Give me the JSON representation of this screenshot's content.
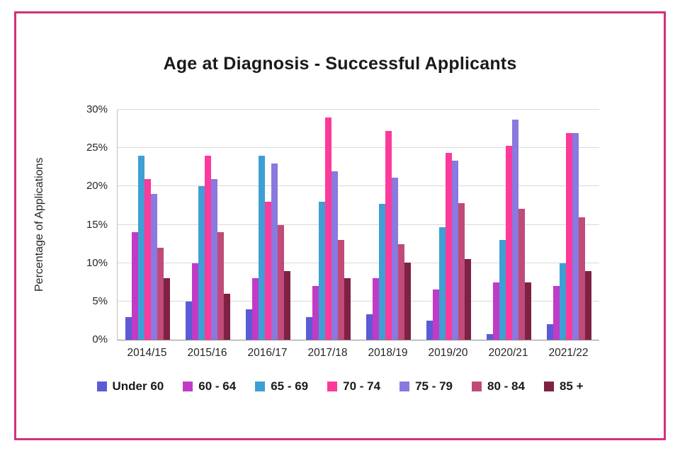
{
  "frame": {
    "border_color": "#D2317E"
  },
  "chart_data": {
    "type": "bar",
    "title": "Age at Diagnosis - Successful Applicants",
    "xlabel": "",
    "ylabel": "Percentage of Applications",
    "ylim": [
      0,
      30
    ],
    "ytick_values": [
      0,
      5,
      10,
      15,
      20,
      25,
      30
    ],
    "ytick_labels": [
      "0%",
      "5%",
      "10%",
      "15%",
      "20%",
      "25%",
      "30%"
    ],
    "grid": true,
    "legend_position": "bottom",
    "categories": [
      "2014/15",
      "2015/16",
      "2016/17",
      "2017/18",
      "2018/19",
      "2019/20",
      "2020/21",
      "2021/22"
    ],
    "series": [
      {
        "name": "Under 60",
        "color": "#5B5BD6",
        "values": [
          3,
          5,
          4,
          3,
          3.3,
          2.5,
          0.7,
          2
        ]
      },
      {
        "name": "60 - 64",
        "color": "#C13BC7",
        "values": [
          14,
          10,
          8,
          7,
          8,
          6.6,
          7.5,
          7
        ]
      },
      {
        "name": "65 - 69",
        "color": "#3E9FD4",
        "values": [
          24,
          20,
          24,
          18,
          17.7,
          14.7,
          13,
          10
        ]
      },
      {
        "name": "70 - 74",
        "color": "#FB3A9B",
        "values": [
          21,
          24,
          18,
          29,
          27.2,
          24.4,
          25.3,
          27
        ]
      },
      {
        "name": "75 - 79",
        "color": "#8A79DE",
        "values": [
          19,
          21,
          23,
          22,
          21.1,
          23.4,
          28.7,
          27
        ]
      },
      {
        "name": "80 - 84",
        "color": "#C04A78",
        "values": [
          12,
          14,
          15,
          13,
          12.5,
          17.8,
          17.1,
          16
        ]
      },
      {
        "name": "85 +",
        "color": "#7E2145",
        "values": [
          8,
          6,
          9,
          8,
          10.1,
          10.5,
          7.5,
          9
        ]
      }
    ]
  }
}
